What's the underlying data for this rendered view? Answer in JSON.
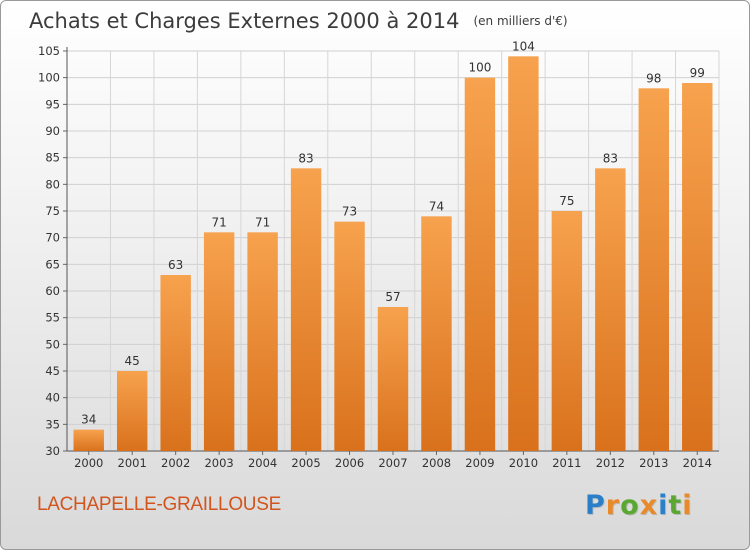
{
  "title": "Achats et Charges Externes 2000 à 2014",
  "unit_note": "(en milliers d'€)",
  "place_name": "LACHAPELLE-GRAILLOUSE",
  "logo": {
    "text": "Proxiti",
    "letters": [
      {
        "ch": "P",
        "color": "#2a7fc8"
      },
      {
        "ch": "r",
        "color": "#e8892a"
      },
      {
        "ch": "o",
        "color": "#5aa832"
      },
      {
        "ch": "x",
        "color": "#e8892a"
      },
      {
        "ch": "i",
        "color": "#2a7fc8"
      },
      {
        "ch": "t",
        "color": "#5aa832"
      },
      {
        "ch": "i",
        "color": "#e8892a"
      }
    ]
  },
  "chart_data": {
    "type": "bar",
    "title": "Achats et Charges Externes 2000 à 2014",
    "subtitle": "(en milliers d'€)",
    "xlabel": "",
    "ylabel": "",
    "categories": [
      "2000",
      "2001",
      "2002",
      "2003",
      "2004",
      "2005",
      "2006",
      "2007",
      "2008",
      "2009",
      "2010",
      "2011",
      "2012",
      "2013",
      "2014"
    ],
    "values": [
      34,
      45,
      63,
      71,
      71,
      83,
      73,
      57,
      74,
      100,
      104,
      75,
      83,
      98,
      99
    ],
    "ylim": [
      30,
      105
    ],
    "yticks": [
      30,
      35,
      40,
      45,
      50,
      55,
      60,
      65,
      70,
      75,
      80,
      85,
      90,
      95,
      100,
      105
    ],
    "grid": true,
    "bar_color_top": "#f7a24e",
    "bar_color_bottom": "#d9711c",
    "legend": "none"
  }
}
